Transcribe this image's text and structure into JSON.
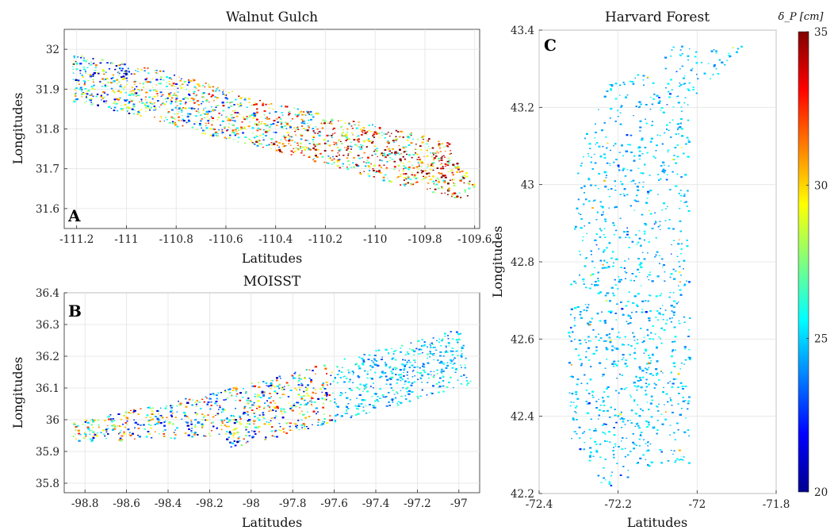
{
  "chart_data": [
    {
      "panel": "A",
      "type": "scatter",
      "title": "Walnut Gulch",
      "xlabel": "Latitudes",
      "ylabel": "Longitudes",
      "xlim": [
        -111.25,
        -109.58
      ],
      "ylim": [
        31.55,
        32.05
      ],
      "xticks": [
        -111.2,
        -111,
        -110.8,
        -110.6,
        -110.4,
        -110.2,
        -110,
        -109.8,
        -109.6
      ],
      "xtick_labels": [
        "-111.2",
        "-111",
        "-110.8",
        "-110.6",
        "-110.4",
        "-110.2",
        "-110",
        "-109.8",
        "-109.6"
      ],
      "yticks": [
        31.6,
        31.7,
        31.8,
        31.9,
        32
      ],
      "ytick_labels": [
        "31.6",
        "31.7",
        "31.8",
        "31.9",
        "32"
      ],
      "grid": true,
      "swath_polygon": [
        [
          -111.22,
          31.99
        ],
        [
          -110.85,
          31.95
        ],
        [
          -110.45,
          31.87
        ],
        [
          -109.7,
          31.77
        ],
        [
          -109.68,
          31.72
        ],
        [
          -109.6,
          31.67
        ],
        [
          -109.62,
          31.62
        ],
        [
          -109.9,
          31.66
        ],
        [
          -110.3,
          31.73
        ],
        [
          -110.7,
          31.79
        ],
        [
          -111.0,
          31.84
        ],
        [
          -111.22,
          31.87
        ]
      ],
      "value_profile": "mixed green-yellow-red with high values in the east half"
    },
    {
      "panel": "B",
      "type": "scatter",
      "title": "MOISST",
      "xlabel": "Latitudes",
      "ylabel": "Longitudes",
      "xlim": [
        -98.9,
        -96.9
      ],
      "ylim": [
        35.77,
        36.4
      ],
      "xticks": [
        -98.8,
        -98.6,
        -98.4,
        -98.2,
        -98,
        -97.8,
        -97.6,
        -97.4,
        -97.2,
        -97
      ],
      "xtick_labels": [
        "-98.8",
        "-98.6",
        "-98.4",
        "-98.2",
        "-98",
        "-97.8",
        "-97.6",
        "-97.4",
        "-97.2",
        "-97"
      ],
      "yticks": [
        35.8,
        35.9,
        36,
        36.1,
        36.2,
        36.3,
        36.4
      ],
      "ytick_labels": [
        "35.8",
        "35.9",
        "36",
        "36.1",
        "36.2",
        "36.3",
        "36.4"
      ],
      "grid": true,
      "swath_polygon": [
        [
          -98.88,
          35.99
        ],
        [
          -98.1,
          36.1
        ],
        [
          -97.0,
          36.29
        ],
        [
          -96.93,
          36.11
        ],
        [
          -98.1,
          35.91
        ],
        [
          -98.13,
          35.95
        ],
        [
          -98.87,
          35.93
        ]
      ],
      "value_profile": "mostly light blue in the east, red/green mixed in the west"
    },
    {
      "panel": "C",
      "type": "scatter",
      "title": "Harvard Forest",
      "xlabel": "Latitudes",
      "ylabel": "Longitudes",
      "xlim": [
        -72.4,
        -71.8
      ],
      "ylim": [
        42.2,
        43.4
      ],
      "xticks": [
        -72.4,
        -72.2,
        -72,
        -71.8
      ],
      "xtick_labels": [
        "-72.4",
        "-72.2",
        "-72",
        "-71.8"
      ],
      "yticks": [
        42.2,
        42.4,
        42.6,
        42.8,
        43,
        43.2,
        43.4
      ],
      "ytick_labels": [
        "42.2",
        "42.4",
        "42.6",
        "42.8",
        "43",
        "43.2",
        "43.4"
      ],
      "grid": true,
      "swath_polygon": [
        [
          -72.21,
          43.29
        ],
        [
          -72.12,
          43.29
        ],
        [
          -72.1,
          43.36
        ],
        [
          -71.88,
          43.36
        ],
        [
          -72.02,
          43.2
        ],
        [
          -72.02,
          42.28
        ],
        [
          -72.15,
          42.27
        ],
        [
          -72.2,
          42.22
        ],
        [
          -72.25,
          42.22
        ],
        [
          -72.28,
          42.3
        ],
        [
          -72.32,
          42.33
        ],
        [
          -72.33,
          42.6
        ],
        [
          -72.3,
          43.1
        ]
      ],
      "value_profile": "predominantly light blue (~24-26 cm)"
    }
  ],
  "colorbar": {
    "title": "δ_P [cm]",
    "min": 20,
    "max": 35,
    "ticks": [
      20,
      25,
      30,
      35
    ],
    "tick_labels": [
      "20",
      "25",
      "30",
      "35"
    ],
    "colormap": "jet"
  }
}
